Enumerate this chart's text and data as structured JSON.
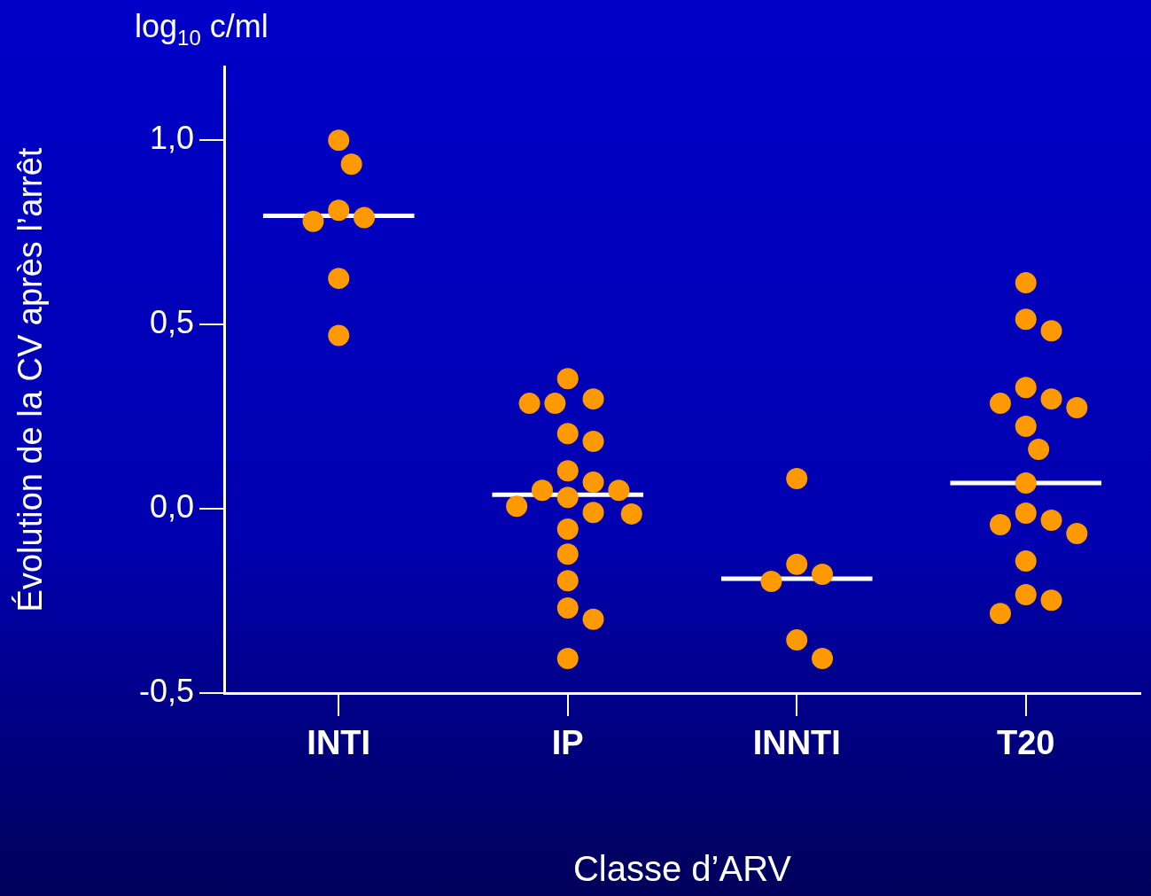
{
  "chart_data": {
    "type": "scatter",
    "xlabel": "Classe d’ARV",
    "ylabel": "Évolution de la CV après l’arrêt",
    "annotations": [
      "log$_{10}$ c/ml"
    ],
    "categories": [
      "INTI",
      "IP",
      "INNTI",
      "T20"
    ],
    "ylim": [
      -0.5,
      1.2
    ],
    "yticks": [
      {
        "value": -0.5,
        "label": "-0,5"
      },
      {
        "value": 0,
        "label": "0,0"
      },
      {
        "value": 0.5,
        "label": "0,5"
      },
      {
        "value": 1,
        "label": "1,0"
      }
    ],
    "grid": false,
    "legend": false,
    "marker": "circle",
    "series": [
      {
        "color": "#ff9900",
        "x": [
          "INTI",
          "INTI",
          "INTI",
          "INTI",
          "INTI",
          "INTI",
          "INTI"
        ],
        "values": [
          1.0,
          0.935,
          0.81,
          0.78,
          0.79,
          0.625,
          0.47
        ]
      },
      {
        "color": "#ff9900",
        "x": [
          "IP",
          "IP",
          "IP",
          "IP",
          "IP",
          "IP",
          "IP",
          "IP",
          "IP",
          "IP",
          "IP",
          "IP",
          "IP",
          "IP",
          "IP",
          "IP",
          "IP",
          "IP",
          "IP",
          "IP"
        ],
        "values": [
          0.353,
          0.286,
          0.286,
          0.298,
          0.183,
          0.204,
          0.103,
          0.05,
          0.072,
          0.05,
          0.031,
          0.007,
          -0.014,
          -0.01,
          -0.055,
          -0.123,
          -0.195,
          -0.269,
          -0.3,
          -0.406
        ]
      },
      {
        "color": "#ff9900",
        "x": [
          "INNTI",
          "INNTI",
          "INNTI",
          "INNTI",
          "INNTI",
          "INNTI"
        ],
        "values": [
          0.082,
          -0.178,
          -0.197,
          -0.151,
          -0.406,
          -0.356
        ]
      },
      {
        "color": "#ff9900",
        "x": [
          "T20",
          "T20",
          "T20",
          "T20",
          "T20",
          "T20",
          "T20",
          "T20",
          "T20",
          "T20",
          "T20",
          "T20",
          "T20",
          "T20",
          "T20",
          "T20",
          "T20",
          "T20"
        ],
        "values": [
          0.613,
          0.514,
          0.483,
          0.329,
          0.286,
          0.274,
          0.298,
          0.224,
          0.161,
          0.07,
          -0.012,
          -0.067,
          -0.043,
          -0.031,
          -0.142,
          -0.233,
          -0.248,
          -0.284
        ]
      }
    ],
    "ref_lines": [
      {
        "axis": "y",
        "value": 0.795,
        "color": "#ffffff"
      },
      {
        "axis": "y",
        "value": 0.038,
        "color": "#ffffff"
      },
      {
        "axis": "y",
        "value": -0.19,
        "color": "#ffffff"
      },
      {
        "axis": "y",
        "value": 0.07,
        "color": "#ffffff"
      }
    ]
  }
}
